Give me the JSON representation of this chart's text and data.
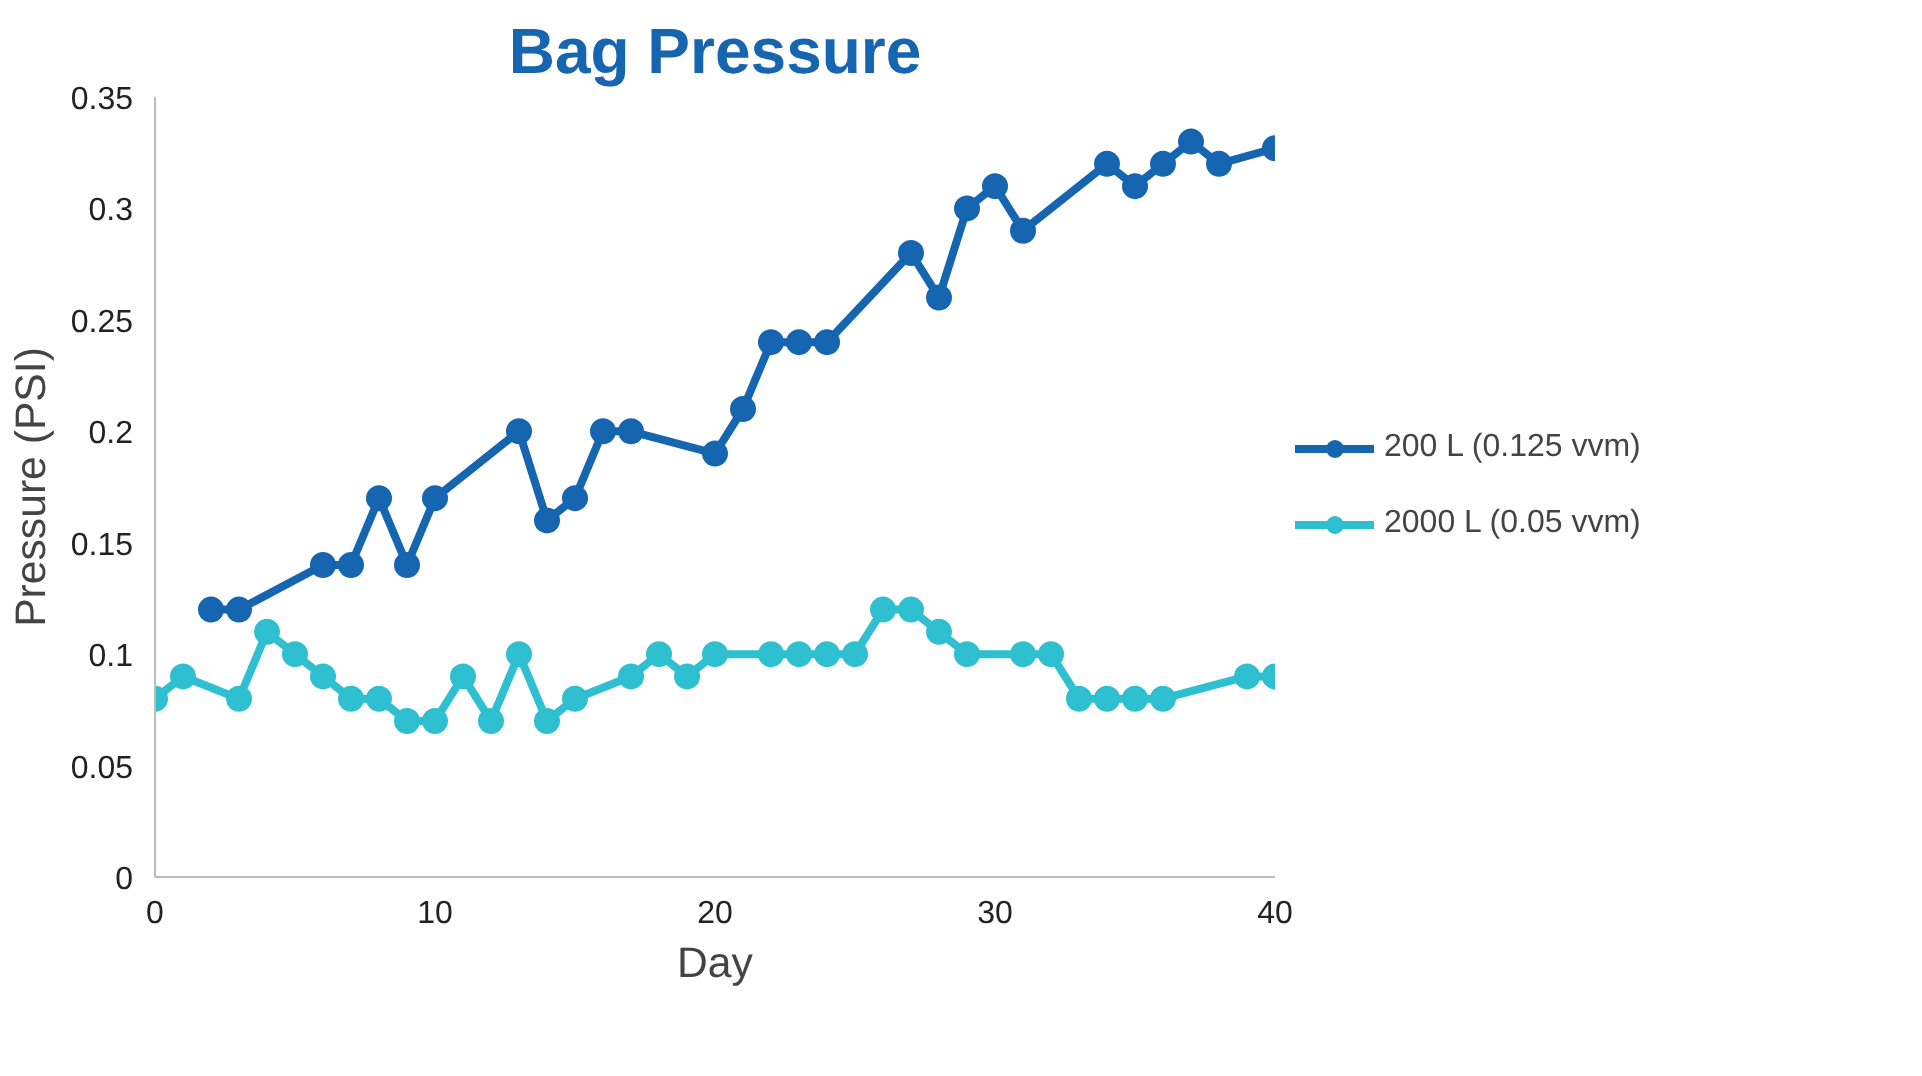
{
  "chart_data": {
    "type": "line",
    "title": "Bag Pressure",
    "xlabel": "Day",
    "ylabel": "Pressure (PSI)",
    "xlim": [
      0,
      40
    ],
    "xticks": [
      0,
      10,
      20,
      30,
      40
    ],
    "ylim": [
      0,
      0.35
    ],
    "yticks": [
      0,
      0.05,
      0.1,
      0.15,
      0.2,
      0.25,
      0.3,
      0.35
    ],
    "grid": false,
    "legend": "right",
    "marker": "circle",
    "line_style": "solid",
    "series": [
      {
        "name": "200 L (0.125 vvm)",
        "color": "#1565b0",
        "x": [
          2,
          3,
          6,
          7,
          8,
          9,
          10,
          13,
          14,
          15,
          16,
          17,
          20,
          21,
          22,
          23,
          24,
          27,
          28,
          29,
          30,
          31,
          34,
          35,
          36,
          37,
          38,
          40
        ],
        "values": [
          0.12,
          0.12,
          0.14,
          0.14,
          0.17,
          0.14,
          0.17,
          0.2,
          0.16,
          0.17,
          0.2,
          0.2,
          0.19,
          0.21,
          0.24,
          0.24,
          0.24,
          0.28,
          0.26,
          0.3,
          0.31,
          0.29,
          0.32,
          0.31,
          0.32,
          0.33,
          0.32,
          0.327
        ]
      },
      {
        "name": "2000 L (0.05 vvm)",
        "color": "#2ebfd0",
        "x": [
          0,
          1,
          3,
          4,
          5,
          6,
          7,
          8,
          9,
          10,
          11,
          12,
          13,
          14,
          15,
          17,
          18,
          19,
          20,
          22,
          23,
          24,
          25,
          26,
          27,
          28,
          29,
          31,
          32,
          33,
          34,
          35,
          36,
          39,
          40
        ],
        "values": [
          0.08,
          0.09,
          0.08,
          0.11,
          0.1,
          0.09,
          0.08,
          0.08,
          0.07,
          0.07,
          0.09,
          0.07,
          0.1,
          0.07,
          0.08,
          0.09,
          0.1,
          0.09,
          0.1,
          0.1,
          0.1,
          0.1,
          0.1,
          0.12,
          0.12,
          0.11,
          0.1,
          0.1,
          0.1,
          0.08,
          0.08,
          0.08,
          0.08,
          0.09,
          0.09
        ]
      }
    ]
  }
}
